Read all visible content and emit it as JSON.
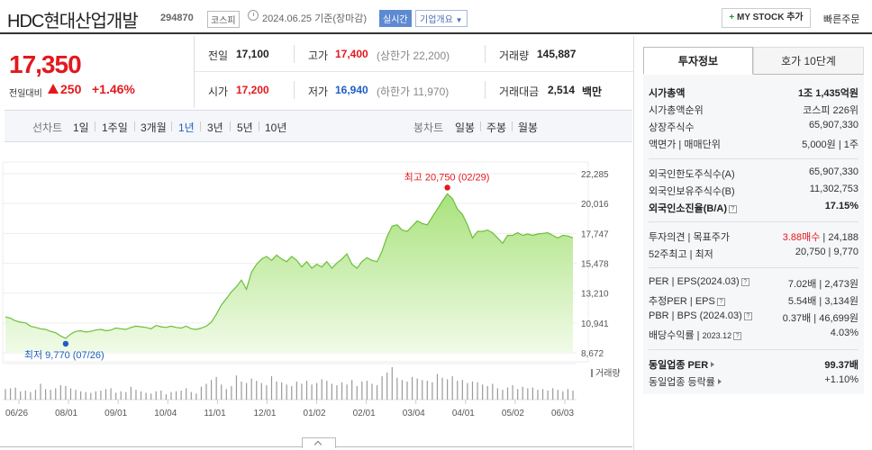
{
  "header": {
    "title": "HDC현대산업개발",
    "code": "294870",
    "market": "코스피",
    "date": "2024.06.25 기준(장마감)",
    "realtime": "실시간",
    "company_info": "기업개요",
    "mystock": "MY STOCK 추가",
    "quick_order": "빠른주문"
  },
  "price": {
    "current": "17,350",
    "change_label": "전일대비",
    "change": "250",
    "change_pct": "+1.46%"
  },
  "quote": {
    "prev_close_label": "전일",
    "prev_close": "17,100",
    "high_label": "고가",
    "high": "17,400",
    "upper_limit": "(상한가 22,200)",
    "volume_label": "거래량",
    "volume": "145,887",
    "open_label": "시가",
    "open": "17,200",
    "low_label": "저가",
    "low": "16,940",
    "lower_limit": "(하한가 11,970)",
    "trade_value_label": "거래대금",
    "trade_value": "2,514",
    "trade_value_unit": "백만"
  },
  "period_bar": {
    "line_label": "선차트",
    "line_periods": [
      "1일",
      "1주일",
      "3개월",
      "1년",
      "3년",
      "5년",
      "10년"
    ],
    "active_period": "1년",
    "candle_label": "봉차트",
    "candle_periods": [
      "일봉",
      "주봉",
      "월봉"
    ]
  },
  "chart_data": {
    "type": "area",
    "y_ticks": [
      "22,285",
      "20,016",
      "17,747",
      "15,478",
      "13,210",
      "10,941",
      "8,672"
    ],
    "ylim": [
      8672,
      22285
    ],
    "x_ticks": [
      "06/26",
      "08/01",
      "09/01",
      "10/04",
      "11/01",
      "12/01",
      "01/02",
      "02/01",
      "03/04",
      "04/01",
      "05/02",
      "06/03"
    ],
    "high_annotation": "최고 20,750 (02/29)",
    "low_annotation": "최저 9,770 (07/26)",
    "high_value": 20750,
    "low_value": 9770,
    "volume_label": "거래량",
    "series": [
      {
        "values": [
          11400,
          11300,
          11100,
          11000,
          10950,
          10700,
          10600,
          10500,
          10450,
          10300,
          10200,
          9950,
          9770,
          10100,
          10300,
          10350,
          10250,
          10300,
          10400,
          10450,
          10350,
          10400,
          10550,
          10500,
          10450,
          10600,
          10700,
          10650,
          10600,
          10500,
          10750,
          10650,
          10600,
          10700,
          10600,
          10550,
          10700,
          10500,
          10450,
          10550,
          10700,
          11000,
          11600,
          12300,
          12800,
          13300,
          13700,
          14200,
          13500,
          14800,
          15400,
          15800,
          16000,
          15700,
          16100,
          15800,
          15600,
          16000,
          15700,
          15200,
          15600,
          15100,
          15400,
          15200,
          15600,
          15100,
          15500,
          15800,
          16200,
          15400,
          15100,
          15600,
          15900,
          15700,
          15600,
          16400,
          17500,
          18300,
          18400,
          18000,
          17900,
          18300,
          18700,
          18500,
          18400,
          19000,
          19600,
          20200,
          20750,
          20400,
          19600,
          19200,
          18400,
          17400,
          17900,
          17900,
          18000,
          17800,
          17400,
          17000,
          17600,
          17600,
          17800,
          17600,
          17700,
          17600,
          17700,
          17750,
          17800,
          17600,
          17400,
          17600,
          17550,
          17400
        ]
      }
    ],
    "volume": [
      28,
      30,
      32,
      22,
      24,
      20,
      26,
      42,
      28,
      26,
      30,
      38,
      36,
      30,
      26,
      22,
      20,
      18,
      22,
      24,
      28,
      30,
      18,
      22,
      20,
      34,
      26,
      22,
      18,
      16,
      22,
      24,
      14,
      20,
      22,
      24,
      30,
      20,
      16,
      34,
      42,
      52,
      60,
      40,
      28,
      36,
      64,
      48,
      44,
      56,
      50,
      44,
      38,
      62,
      48,
      46,
      40,
      36,
      48,
      42,
      50,
      40,
      44,
      54,
      50,
      42,
      38,
      46,
      40,
      52,
      36,
      48,
      50,
      42,
      38,
      62,
      72,
      86,
      58,
      52,
      48,
      60,
      56,
      52,
      50,
      46,
      68,
      58,
      54,
      62,
      50,
      52,
      44,
      48,
      46,
      40,
      36,
      42,
      30,
      26,
      32,
      38,
      28,
      34,
      30,
      32,
      26,
      28,
      24,
      30,
      26,
      22,
      28,
      24
    ]
  },
  "info_tabs": {
    "tab1": "투자정보",
    "tab2": "호가 10단계"
  },
  "info": {
    "market_cap_label": "시가총액",
    "market_cap": "1조 1,435억원",
    "market_cap_rank_label": "시가총액순위",
    "market_cap_rank": "코스피 226위",
    "shares_label": "상장주식수",
    "shares": "65,907,330",
    "par_label": "액면가 | 매매단위",
    "par": "5,000원 | 1주",
    "foreign_limit_label": "외국인한도주식수(A)",
    "foreign_limit": "65,907,330",
    "foreign_hold_label": "외국인보유주식수(B)",
    "foreign_hold": "11,302,753",
    "foreign_ratio_label": "외국인소진율(B/A)",
    "foreign_ratio": "17.15%",
    "opinion_label": "투자의견",
    "target_label": "목표주가",
    "opinion": "3.88매수",
    "target": "24,188",
    "wk52_label": "52주최고 | 최저",
    "wk52_high": "20,750",
    "wk52_low": "9,770",
    "per_label": "PER",
    "eps_label": "EPS(2024.03)",
    "per": "7.02배",
    "eps": "2,473원",
    "est_per_label": "추정PER",
    "est_eps_label": "EPS",
    "est_per": "5.54배",
    "est_eps": "3,134원",
    "pbr_label": "PBR",
    "bps_label": "BPS (2024.03)",
    "pbr": "0.37배",
    "bps": "46,699원",
    "div_label": "배당수익률",
    "div_date": "2023.12",
    "div": "4.03%",
    "ind_per_label": "동일업종 PER",
    "ind_per": "99.37배",
    "ind_rate_label": "동일업종 등락률",
    "ind_rate": "+1.10%"
  }
}
